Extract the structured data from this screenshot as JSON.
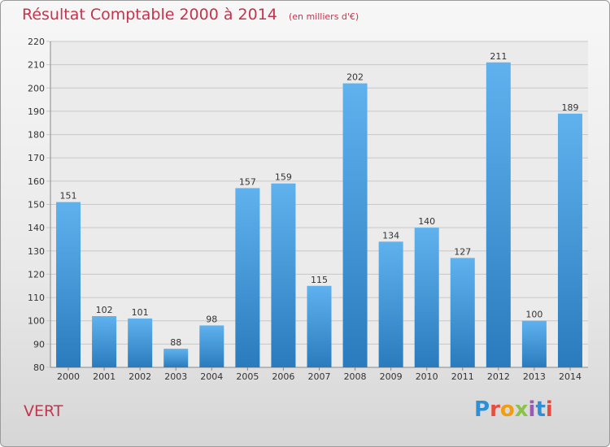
{
  "chart_data": {
    "type": "bar",
    "title": "Résultat Comptable 2000 à 2014",
    "subtitle": "(en milliers d'€)",
    "categories": [
      "2000",
      "2001",
      "2002",
      "2003",
      "2004",
      "2005",
      "2006",
      "2007",
      "2008",
      "2009",
      "2010",
      "2011",
      "2012",
      "2013",
      "2014"
    ],
    "values": [
      151,
      102,
      101,
      88,
      98,
      157,
      159,
      115,
      202,
      134,
      140,
      127,
      211,
      100,
      189
    ],
    "ylim": [
      80,
      220
    ],
    "yticks": [
      80,
      90,
      100,
      110,
      120,
      130,
      140,
      150,
      160,
      170,
      180,
      190,
      200,
      210,
      220
    ],
    "xlabel": "",
    "ylabel": "",
    "grid": true
  },
  "footer": {
    "commune": "VERT",
    "brand": "Proxiti"
  },
  "colors": {
    "title": "#c4344d",
    "bar_top": "#5fb2ee",
    "bar_bottom": "#2a7bbd",
    "grid": "#c8c8c8"
  }
}
